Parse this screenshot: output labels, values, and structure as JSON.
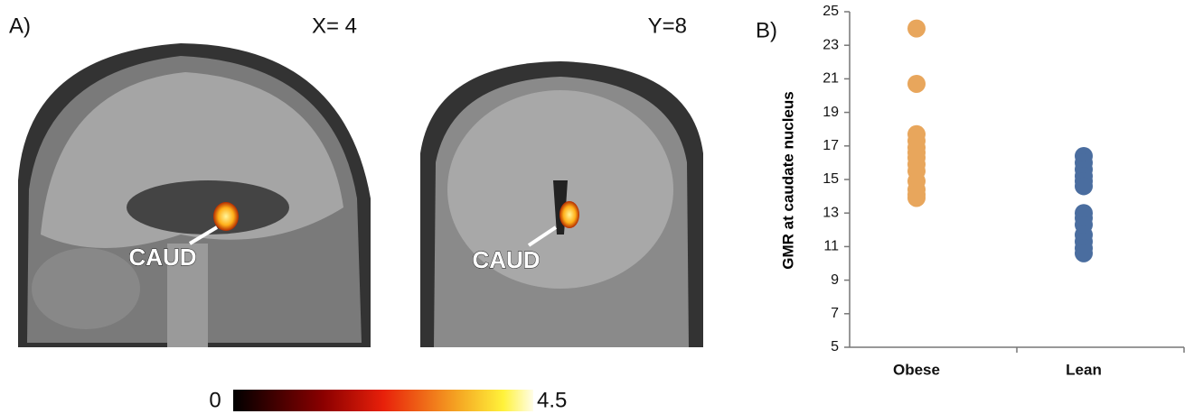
{
  "panel_a": {
    "label": "A)",
    "slices": [
      {
        "label": "X= 4",
        "annotation": "CAUD"
      },
      {
        "label": "Y=8",
        "annotation": "CAUD"
      }
    ],
    "colorbar": {
      "min": 0,
      "max": 4.5
    }
  },
  "chart_data": {
    "type": "strip",
    "panel_label": "B)",
    "y_label": "GMR at caudate nucleus",
    "categories": [
      "Obese",
      "Lean"
    ],
    "series": [
      {
        "color": "#e8a65c",
        "values": [
          24,
          20.7,
          17.7,
          17.3,
          16.9,
          16.6,
          16.3,
          15.9,
          15.5,
          14.9,
          14.4,
          14.1,
          13.9
        ]
      },
      {
        "color": "#4a6d9f",
        "values": [
          16.4,
          16.0,
          15.6,
          15.2,
          14.9,
          14.6,
          13.0,
          12.7,
          12.3,
          11.7,
          11.3,
          10.9,
          10.6
        ]
      }
    ],
    "ylim": [
      5,
      25
    ],
    "yticks": [
      5,
      7,
      9,
      11,
      13,
      15,
      17,
      19,
      21,
      23,
      25
    ]
  }
}
